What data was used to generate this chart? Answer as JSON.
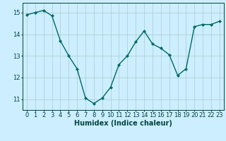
{
  "x": [
    0,
    1,
    2,
    3,
    4,
    5,
    6,
    7,
    8,
    9,
    10,
    11,
    12,
    13,
    14,
    15,
    16,
    17,
    18,
    19,
    20,
    21,
    22,
    23
  ],
  "y": [
    14.9,
    15.0,
    15.1,
    14.85,
    13.7,
    13.0,
    12.4,
    11.05,
    10.8,
    11.05,
    11.55,
    12.6,
    13.0,
    13.65,
    14.15,
    13.55,
    13.35,
    13.05,
    12.1,
    12.4,
    14.35,
    14.45,
    14.45,
    14.6
  ],
  "line_color": "#006868",
  "marker": "D",
  "marker_size": 2.2,
  "linewidth": 1.0,
  "bg_color": "#cceeff",
  "grid_color": "#aacccc",
  "axis_color": "#004444",
  "xlabel": "Humidex (Indice chaleur)",
  "xlabel_fontsize": 7,
  "tick_fontsize": 6,
  "yticks": [
    11,
    12,
    13,
    14,
    15
  ],
  "xticks": [
    0,
    1,
    2,
    3,
    4,
    5,
    6,
    7,
    8,
    9,
    10,
    11,
    12,
    13,
    14,
    15,
    16,
    17,
    18,
    19,
    20,
    21,
    22,
    23
  ],
  "ylim": [
    10.5,
    15.45
  ],
  "xlim": [
    -0.5,
    23.5
  ]
}
